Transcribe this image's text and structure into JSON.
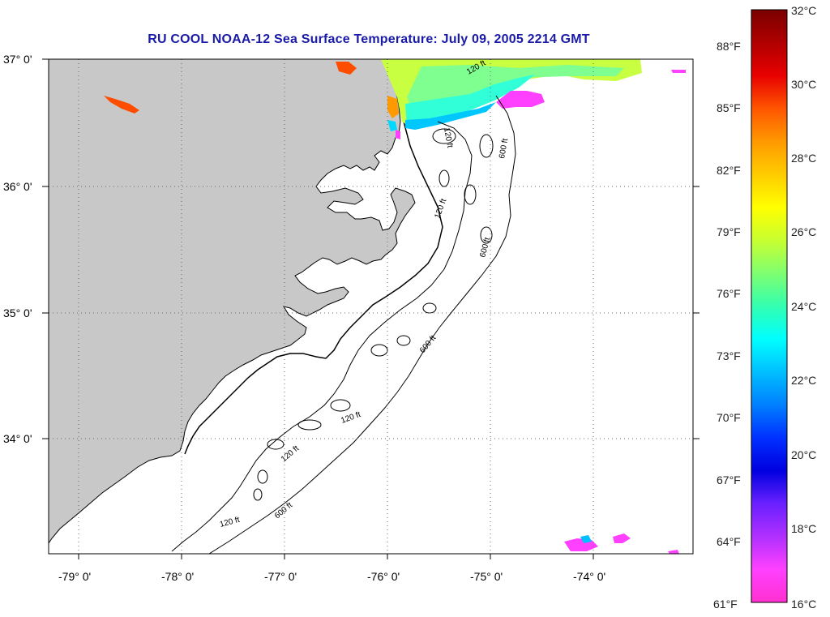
{
  "title": "RU COOL  NOAA-12  Sea Surface Temperature:  July 09, 2005 2214 GMT",
  "colors": {
    "land": "#c8c8c8",
    "water": "#ffffff",
    "frame": "#000000",
    "grid": "#666666",
    "title": "#1a1aa8"
  },
  "map": {
    "lon_range": [
      -79.3,
      -73.2
    ],
    "lat_range": [
      33.1,
      37.0
    ],
    "lat_labels": [
      "37° 0'",
      "36° 0'",
      "35° 0'",
      "34° 0'"
    ],
    "lon_labels": [
      "-79° 0'",
      "-78° 0'",
      "-77° 0'",
      "-76° 0'",
      "-75° 0'",
      "-74° 0'"
    ],
    "contours": [
      {
        "label": "120 ft"
      },
      {
        "label": "120 ft"
      },
      {
        "label": "120 ft"
      },
      {
        "label": "120 ft"
      },
      {
        "label": "120 ft"
      },
      {
        "label": "120 ft"
      },
      {
        "label": "600 ft"
      },
      {
        "label": "600 ft"
      },
      {
        "label": "600 ft"
      },
      {
        "label": "600 ft"
      }
    ]
  },
  "legend": {
    "celsius": [
      "32°C",
      "30°C",
      "28°C",
      "26°C",
      "24°C",
      "22°C",
      "20°C",
      "18°C",
      "16°C"
    ],
    "fahrenheit": [
      "88°F",
      "85°F",
      "82°F",
      "79°F",
      "76°F",
      "73°F",
      "70°F",
      "67°F",
      "64°F",
      "61°F"
    ],
    "gradient": [
      "#7a0000",
      "#b00000",
      "#e80000",
      "#ff5500",
      "#ff9900",
      "#ffcc00",
      "#ffff00",
      "#c8ff30",
      "#7fff70",
      "#33ffb0",
      "#00ffff",
      "#00bfff",
      "#0080ff",
      "#0030ff",
      "#0000e0",
      "#6a20ff",
      "#b030ff",
      "#ff40ff",
      "#ff30d0"
    ]
  }
}
